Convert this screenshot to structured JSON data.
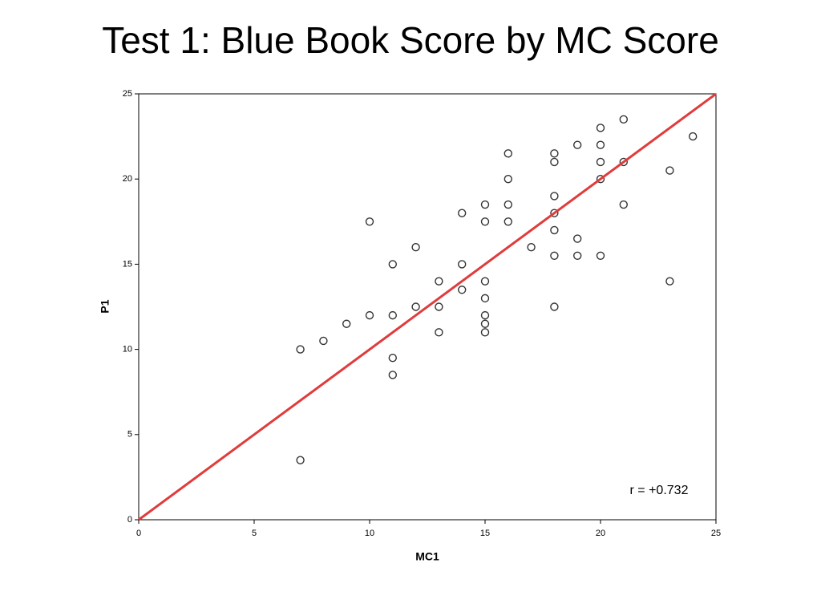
{
  "chart_data": {
    "type": "scatter",
    "title": "Test 1: Blue Book Score by MC Score",
    "x_label": "MC1",
    "y_label": "P1",
    "x": [
      7,
      7,
      8,
      9,
      10,
      10,
      11,
      11,
      11,
      11,
      12,
      12,
      13,
      13,
      13,
      14,
      14,
      14,
      15,
      15,
      15,
      15,
      15,
      15,
      15,
      16,
      16,
      16,
      16,
      17,
      18,
      18,
      18,
      18,
      18,
      18,
      18,
      19,
      19,
      19,
      20,
      20,
      20,
      20,
      20,
      21,
      21,
      21,
      23,
      23,
      24
    ],
    "y": [
      10,
      3.5,
      10.5,
      11.5,
      17.5,
      12,
      15,
      12,
      9.5,
      8.5,
      16,
      12.5,
      14,
      12.5,
      11,
      18,
      15,
      13.5,
      18.5,
      17.5,
      14,
      13,
      12,
      11.5,
      11,
      21.5,
      20,
      18.5,
      17.5,
      16,
      21.5,
      21,
      19,
      18,
      17,
      15.5,
      12.5,
      22,
      16.5,
      15.5,
      23,
      22,
      21,
      20,
      15.5,
      23.5,
      21,
      18.5,
      20.5,
      14,
      22.5
    ],
    "marker_color": "#333333",
    "fit_line": {
      "x": [
        0,
        25
      ],
      "y": [
        0,
        25
      ],
      "color": "#e03c3c"
    },
    "annotation": "r = +0.732",
    "xlim": [
      0,
      25
    ],
    "ylim": [
      0,
      25
    ],
    "xticks": [
      0,
      5,
      10,
      15,
      20,
      25
    ],
    "yticks": [
      0,
      5,
      10,
      15,
      20,
      25
    ]
  }
}
